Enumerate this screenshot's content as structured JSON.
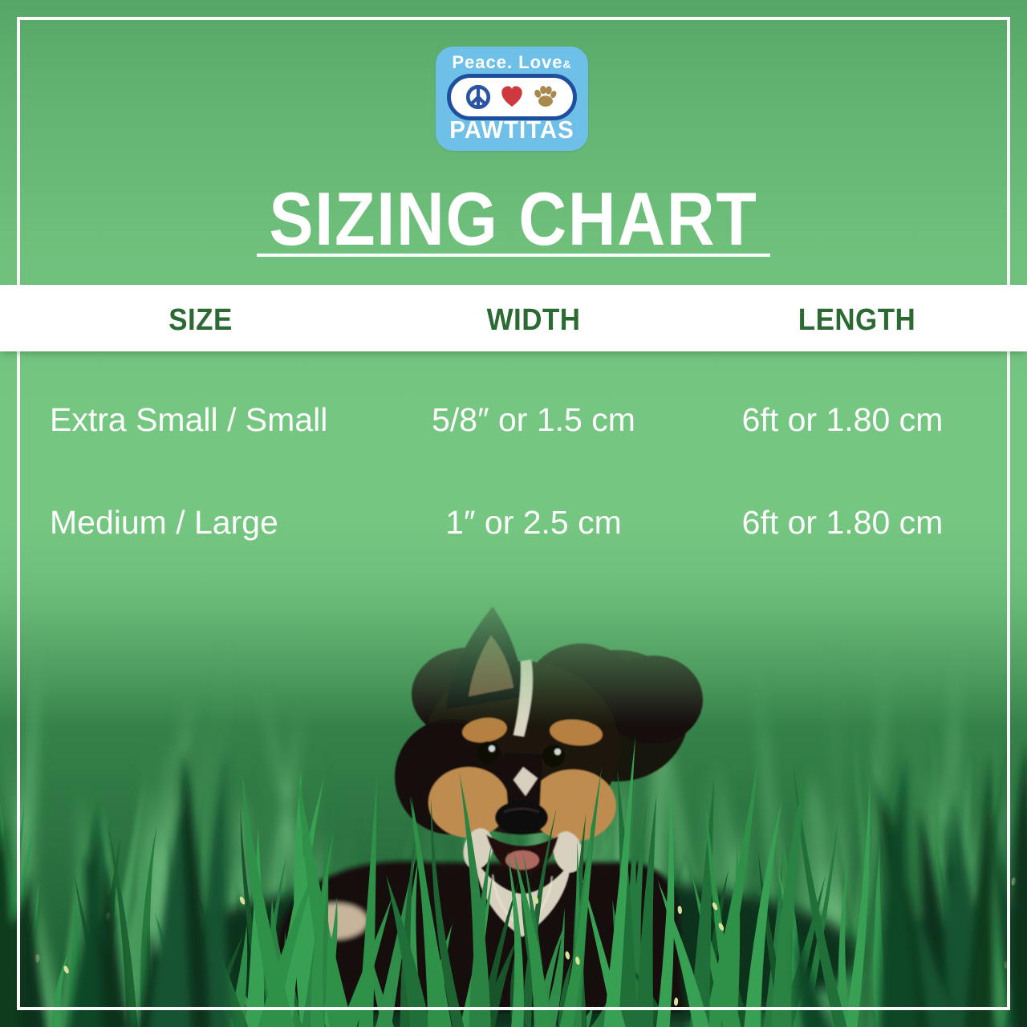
{
  "logo": {
    "tagline": "Peace. Love",
    "ampersand": "&",
    "brand": "PAWTITAS",
    "badge_blue": "#6fc0e8",
    "outline_blue": "#1e4f9f",
    "peace_blue": "#2b55a2",
    "heart_red": "#cd393e",
    "paw_tan": "#a8894e"
  },
  "title": {
    "text": "SIZING CHART",
    "color": "#ffffff"
  },
  "table": {
    "headers": [
      "SIZE",
      "WIDTH",
      "LENGTH"
    ],
    "header_color": "#2b6a33",
    "rows": [
      {
        "size": "Extra Small / Small",
        "width": "5/8″ or 1.5 cm",
        "length": "6ft or 1.80 cm"
      },
      {
        "size": "Medium / Large",
        "width": "1″ or 2.5 cm",
        "length": "6ft or 1.80 cm"
      }
    ]
  },
  "chart_data": {
    "type": "table",
    "title": "SIZING CHART",
    "columns": [
      "SIZE",
      "WIDTH",
      "LENGTH"
    ],
    "rows": [
      [
        "Extra Small / Small",
        "5/8″ or 1.5 cm",
        "6ft or 1.80 cm"
      ],
      [
        "Medium / Large",
        "1″ or 2.5 cm",
        "6ft or 1.80 cm"
      ]
    ]
  },
  "photo": {
    "alt": "Black and tan puppy with one ear up lying in green grass"
  },
  "colors": {
    "background_green_top": "#56a767",
    "background_green_mid": "#75c681",
    "grass_dark": "#1b5a30",
    "frame_white": "#fafdf9"
  }
}
